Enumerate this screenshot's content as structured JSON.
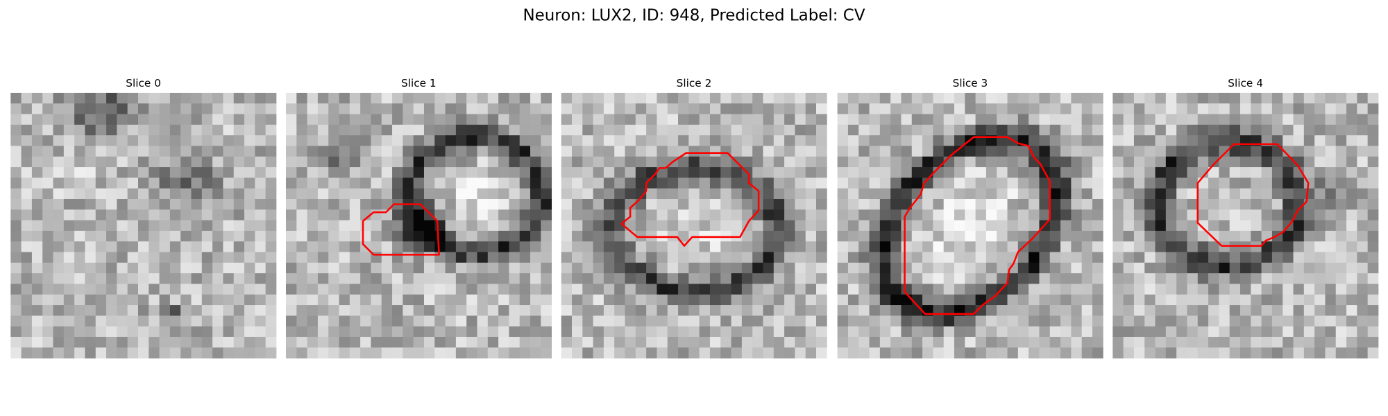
{
  "title": "Neuron: LUX2, ID: 948, Predicted Label: CV",
  "panels": [
    {
      "title": "Slice 0"
    },
    {
      "title": "Slice 1"
    },
    {
      "title": "Slice 2"
    },
    {
      "title": "Slice 3"
    },
    {
      "title": "Slice 4"
    }
  ]
}
